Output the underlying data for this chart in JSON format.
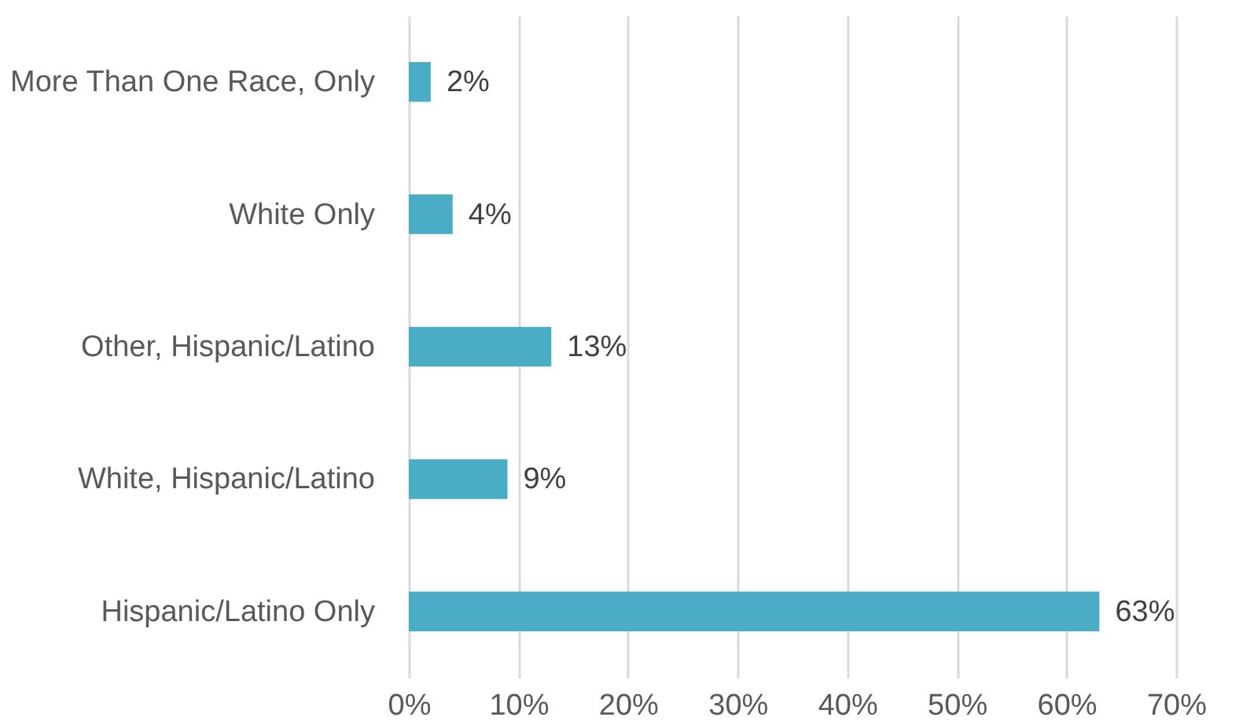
{
  "chart_data": {
    "type": "bar",
    "orientation": "horizontal",
    "categories": [
      "More Than One Race, Only",
      "White Only",
      "Other, Hispanic/Latino",
      "White, Hispanic/Latino",
      "Hispanic/Latino Only"
    ],
    "values": [
      2,
      4,
      13,
      9,
      63
    ],
    "value_labels": [
      "2%",
      "4%",
      "13%",
      "9%",
      "63%"
    ],
    "color": "#4bacc6",
    "xlim": [
      0,
      70
    ],
    "xticks": [
      {
        "value": 0,
        "label": "0%"
      },
      {
        "value": 10,
        "label": "10%"
      },
      {
        "value": 20,
        "label": "20%"
      },
      {
        "value": 30,
        "label": "30%"
      },
      {
        "value": 40,
        "label": "40%"
      },
      {
        "value": 50,
        "label": "50%"
      },
      {
        "value": 60,
        "label": "60%"
      },
      {
        "value": 70,
        "label": "70%"
      }
    ],
    "grid": "x"
  }
}
